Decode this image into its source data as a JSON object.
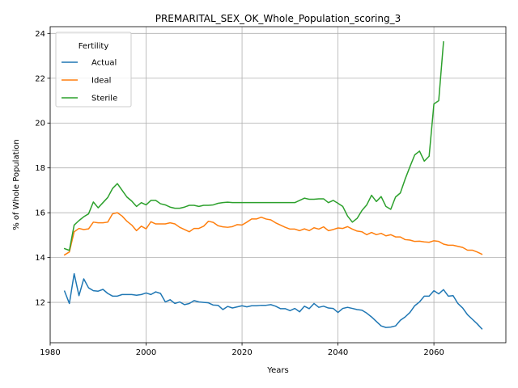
{
  "chart_data": {
    "type": "line",
    "title": "PREMARITAL_SEX_OK_Whole_Population_scoring_3",
    "xlabel": "Years",
    "ylabel": "% of Whole Population",
    "xlim": [
      1980,
      2075
    ],
    "ylim": [
      10.2,
      24.3
    ],
    "xticks": [
      1980,
      2000,
      2020,
      2040,
      2060
    ],
    "yticks": [
      12,
      14,
      16,
      18,
      20,
      22,
      24
    ],
    "grid": true,
    "legend": {
      "title": "Fertility",
      "placement": "top-left"
    },
    "series": [
      {
        "name": "Actual",
        "color": "#1f77b4",
        "points": [
          [
            1983,
            12.5
          ],
          [
            1984,
            11.95
          ],
          [
            1985,
            13.28
          ],
          [
            1986,
            12.3
          ],
          [
            1987,
            13.05
          ],
          [
            1988,
            12.65
          ],
          [
            1989,
            12.52
          ],
          [
            1990,
            12.5
          ],
          [
            1991,
            12.58
          ],
          [
            1992,
            12.4
          ],
          [
            1993,
            12.28
          ],
          [
            1994,
            12.28
          ],
          [
            1995,
            12.35
          ],
          [
            1996,
            12.35
          ],
          [
            1997,
            12.35
          ],
          [
            1998,
            12.32
          ],
          [
            1999,
            12.35
          ],
          [
            2000,
            12.42
          ],
          [
            2001,
            12.35
          ],
          [
            2002,
            12.47
          ],
          [
            2003,
            12.4
          ],
          [
            2004,
            12.02
          ],
          [
            2005,
            12.12
          ],
          [
            2006,
            11.95
          ],
          [
            2007,
            12.02
          ],
          [
            2008,
            11.9
          ],
          [
            2009,
            11.95
          ],
          [
            2010,
            12.08
          ],
          [
            2011,
            12.02
          ],
          [
            2012,
            12.0
          ],
          [
            2013,
            11.98
          ],
          [
            2014,
            11.88
          ],
          [
            2015,
            11.87
          ],
          [
            2016,
            11.68
          ],
          [
            2017,
            11.82
          ],
          [
            2018,
            11.75
          ],
          [
            2019,
            11.8
          ],
          [
            2020,
            11.85
          ],
          [
            2021,
            11.8
          ],
          [
            2022,
            11.85
          ],
          [
            2023,
            11.85
          ],
          [
            2024,
            11.87
          ],
          [
            2025,
            11.87
          ],
          [
            2026,
            11.9
          ],
          [
            2027,
            11.83
          ],
          [
            2028,
            11.72
          ],
          [
            2029,
            11.72
          ],
          [
            2030,
            11.63
          ],
          [
            2031,
            11.73
          ],
          [
            2032,
            11.58
          ],
          [
            2033,
            11.83
          ],
          [
            2034,
            11.72
          ],
          [
            2035,
            11.95
          ],
          [
            2036,
            11.78
          ],
          [
            2037,
            11.83
          ],
          [
            2038,
            11.75
          ],
          [
            2039,
            11.73
          ],
          [
            2040,
            11.55
          ],
          [
            2041,
            11.73
          ],
          [
            2042,
            11.78
          ],
          [
            2043,
            11.73
          ],
          [
            2044,
            11.68
          ],
          [
            2045,
            11.65
          ],
          [
            2046,
            11.52
          ],
          [
            2047,
            11.35
          ],
          [
            2048,
            11.15
          ],
          [
            2049,
            10.95
          ],
          [
            2050,
            10.88
          ],
          [
            2051,
            10.9
          ],
          [
            2052,
            10.95
          ],
          [
            2053,
            11.2
          ],
          [
            2054,
            11.35
          ],
          [
            2055,
            11.55
          ],
          [
            2056,
            11.85
          ],
          [
            2057,
            12.02
          ],
          [
            2058,
            12.28
          ],
          [
            2059,
            12.28
          ],
          [
            2060,
            12.52
          ],
          [
            2061,
            12.38
          ],
          [
            2062,
            12.57
          ],
          [
            2063,
            12.28
          ],
          [
            2064,
            12.3
          ],
          [
            2065,
            11.95
          ],
          [
            2066,
            11.75
          ],
          [
            2067,
            11.45
          ],
          [
            2068,
            11.25
          ],
          [
            2069,
            11.05
          ],
          [
            2070,
            10.82
          ]
        ]
      },
      {
        "name": "Ideal",
        "color": "#ff7f0e",
        "points": [
          [
            1983,
            14.12
          ],
          [
            1984,
            14.25
          ],
          [
            1985,
            15.15
          ],
          [
            1986,
            15.3
          ],
          [
            1987,
            15.25
          ],
          [
            1988,
            15.28
          ],
          [
            1989,
            15.58
          ],
          [
            1990,
            15.55
          ],
          [
            1991,
            15.55
          ],
          [
            1992,
            15.58
          ],
          [
            1993,
            15.95
          ],
          [
            1994,
            16.0
          ],
          [
            1995,
            15.85
          ],
          [
            1996,
            15.62
          ],
          [
            1997,
            15.45
          ],
          [
            1998,
            15.2
          ],
          [
            1999,
            15.4
          ],
          [
            2000,
            15.28
          ],
          [
            2001,
            15.6
          ],
          [
            2002,
            15.5
          ],
          [
            2003,
            15.5
          ],
          [
            2004,
            15.5
          ],
          [
            2005,
            15.55
          ],
          [
            2006,
            15.5
          ],
          [
            2007,
            15.35
          ],
          [
            2008,
            15.25
          ],
          [
            2009,
            15.15
          ],
          [
            2010,
            15.3
          ],
          [
            2011,
            15.3
          ],
          [
            2012,
            15.4
          ],
          [
            2013,
            15.62
          ],
          [
            2014,
            15.57
          ],
          [
            2015,
            15.42
          ],
          [
            2016,
            15.37
          ],
          [
            2017,
            15.35
          ],
          [
            2018,
            15.38
          ],
          [
            2019,
            15.47
          ],
          [
            2020,
            15.45
          ],
          [
            2021,
            15.58
          ],
          [
            2022,
            15.72
          ],
          [
            2023,
            15.72
          ],
          [
            2024,
            15.8
          ],
          [
            2025,
            15.72
          ],
          [
            2026,
            15.68
          ],
          [
            2027,
            15.55
          ],
          [
            2028,
            15.45
          ],
          [
            2029,
            15.35
          ],
          [
            2030,
            15.27
          ],
          [
            2031,
            15.27
          ],
          [
            2032,
            15.2
          ],
          [
            2033,
            15.28
          ],
          [
            2034,
            15.2
          ],
          [
            2035,
            15.33
          ],
          [
            2036,
            15.27
          ],
          [
            2037,
            15.37
          ],
          [
            2038,
            15.2
          ],
          [
            2039,
            15.25
          ],
          [
            2040,
            15.32
          ],
          [
            2041,
            15.3
          ],
          [
            2042,
            15.38
          ],
          [
            2043,
            15.27
          ],
          [
            2044,
            15.18
          ],
          [
            2045,
            15.15
          ],
          [
            2046,
            15.02
          ],
          [
            2047,
            15.12
          ],
          [
            2048,
            15.02
          ],
          [
            2049,
            15.08
          ],
          [
            2050,
            14.97
          ],
          [
            2051,
            15.02
          ],
          [
            2052,
            14.92
          ],
          [
            2053,
            14.92
          ],
          [
            2054,
            14.8
          ],
          [
            2055,
            14.78
          ],
          [
            2056,
            14.72
          ],
          [
            2057,
            14.73
          ],
          [
            2058,
            14.7
          ],
          [
            2059,
            14.68
          ],
          [
            2060,
            14.75
          ],
          [
            2061,
            14.72
          ],
          [
            2062,
            14.6
          ],
          [
            2063,
            14.55
          ],
          [
            2064,
            14.55
          ],
          [
            2065,
            14.5
          ],
          [
            2066,
            14.45
          ],
          [
            2067,
            14.33
          ],
          [
            2068,
            14.33
          ],
          [
            2069,
            14.25
          ],
          [
            2070,
            14.15
          ]
        ]
      },
      {
        "name": "Sterile",
        "color": "#2ca02c",
        "points": [
          [
            1983,
            14.4
          ],
          [
            1984,
            14.32
          ],
          [
            1985,
            15.45
          ],
          [
            1986,
            15.65
          ],
          [
            1987,
            15.82
          ],
          [
            1988,
            15.95
          ],
          [
            1989,
            16.48
          ],
          [
            1990,
            16.22
          ],
          [
            1991,
            16.45
          ],
          [
            1992,
            16.68
          ],
          [
            1993,
            17.08
          ],
          [
            1994,
            17.3
          ],
          [
            1995,
            17.0
          ],
          [
            1996,
            16.7
          ],
          [
            1997,
            16.52
          ],
          [
            1998,
            16.28
          ],
          [
            1999,
            16.45
          ],
          [
            2000,
            16.35
          ],
          [
            2001,
            16.55
          ],
          [
            2002,
            16.55
          ],
          [
            2003,
            16.4
          ],
          [
            2004,
            16.35
          ],
          [
            2005,
            16.25
          ],
          [
            2006,
            16.2
          ],
          [
            2007,
            16.2
          ],
          [
            2008,
            16.25
          ],
          [
            2009,
            16.33
          ],
          [
            2010,
            16.33
          ],
          [
            2011,
            16.28
          ],
          [
            2012,
            16.33
          ],
          [
            2013,
            16.33
          ],
          [
            2014,
            16.35
          ],
          [
            2015,
            16.42
          ],
          [
            2016,
            16.45
          ],
          [
            2017,
            16.47
          ],
          [
            2018,
            16.45
          ],
          [
            2019,
            16.45
          ],
          [
            2020,
            16.45
          ],
          [
            2021,
            16.45
          ],
          [
            2022,
            16.45
          ],
          [
            2023,
            16.45
          ],
          [
            2024,
            16.45
          ],
          [
            2025,
            16.45
          ],
          [
            2026,
            16.45
          ],
          [
            2027,
            16.45
          ],
          [
            2028,
            16.45
          ],
          [
            2029,
            16.45
          ],
          [
            2030,
            16.45
          ],
          [
            2031,
            16.45
          ],
          [
            2032,
            16.55
          ],
          [
            2033,
            16.65
          ],
          [
            2034,
            16.6
          ],
          [
            2035,
            16.6
          ],
          [
            2036,
            16.62
          ],
          [
            2037,
            16.62
          ],
          [
            2038,
            16.45
          ],
          [
            2039,
            16.55
          ],
          [
            2040,
            16.42
          ],
          [
            2041,
            16.28
          ],
          [
            2042,
            15.85
          ],
          [
            2043,
            15.58
          ],
          [
            2044,
            15.75
          ],
          [
            2045,
            16.1
          ],
          [
            2046,
            16.35
          ],
          [
            2047,
            16.78
          ],
          [
            2048,
            16.5
          ],
          [
            2049,
            16.72
          ],
          [
            2050,
            16.28
          ],
          [
            2051,
            16.15
          ],
          [
            2052,
            16.7
          ],
          [
            2053,
            16.88
          ],
          [
            2054,
            17.5
          ],
          [
            2055,
            18.05
          ],
          [
            2056,
            18.58
          ],
          [
            2057,
            18.75
          ],
          [
            2058,
            18.3
          ],
          [
            2059,
            18.52
          ],
          [
            2060,
            20.85
          ],
          [
            2061,
            21.0
          ],
          [
            2062,
            23.62
          ]
        ]
      }
    ]
  }
}
